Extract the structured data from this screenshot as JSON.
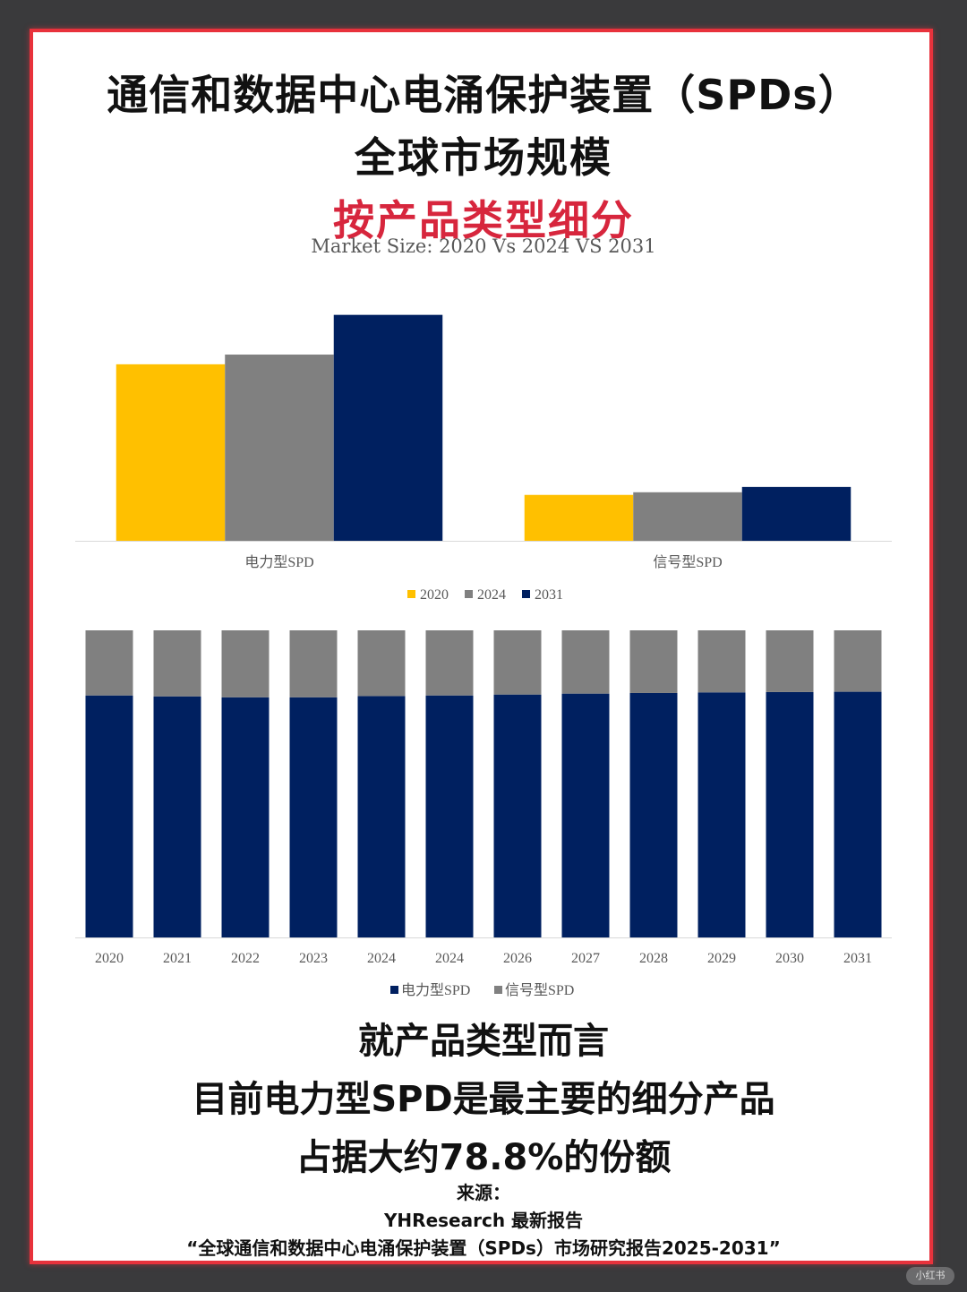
{
  "header": {
    "title_line1": "通信和数据中心电涌保护装置（SPDs）",
    "title_line2": "全球市场规模",
    "title_line3": "按产品类型细分",
    "subtitle": "Market Size: 2020 Vs 2024 VS 2031"
  },
  "colors": {
    "c2020": "#FFC000",
    "c2024": "#808080",
    "c2031": "#002060",
    "power": "#002060",
    "signal": "#808080",
    "frame_border": "#e8323c",
    "title_accent": "#d7263d"
  },
  "chart_data": [
    {
      "type": "bar",
      "title": "",
      "categories": [
        "电力型SPD",
        "信号型SPD"
      ],
      "series": [
        {
          "name": "2020",
          "values": [
            100,
            26
          ]
        },
        {
          "name": "2024",
          "values": [
            105.5,
            27.5
          ]
        },
        {
          "name": "2031",
          "values": [
            128,
            30.5
          ]
        }
      ],
      "ylim": [
        0,
        140
      ],
      "grid": false,
      "legend": "bottom"
    },
    {
      "type": "bar",
      "stacked": true,
      "percent": true,
      "categories": [
        "2020",
        "2021",
        "2022",
        "2023",
        "2024",
        "2024",
        "2026",
        "2027",
        "2028",
        "2029",
        "2030",
        "2031"
      ],
      "series": [
        {
          "name": "电力型SPD",
          "values": [
            78.8,
            78.5,
            78.2,
            78.2,
            78.6,
            78.8,
            79.1,
            79.4,
            79.6,
            79.8,
            79.9,
            80.0
          ]
        },
        {
          "name": "信号型SPD",
          "values": [
            21.2,
            21.5,
            21.8,
            21.8,
            21.4,
            21.2,
            20.9,
            20.6,
            20.4,
            20.2,
            20.1,
            20.0
          ]
        }
      ],
      "ylim": [
        0,
        100
      ],
      "grid": false,
      "legend": "bottom"
    }
  ],
  "summary": {
    "line1": "就产品类型而言",
    "line2": "目前电力型SPD是最主要的细分产品",
    "line3": "占据大约78.8%的份额"
  },
  "source": {
    "label": "来源：",
    "org": "YHResearch 最新报告",
    "report": "“全球通信和数据中心电涌保护装置（SPDs）市场研究报告2025-2031”"
  },
  "watermark": "小红书"
}
